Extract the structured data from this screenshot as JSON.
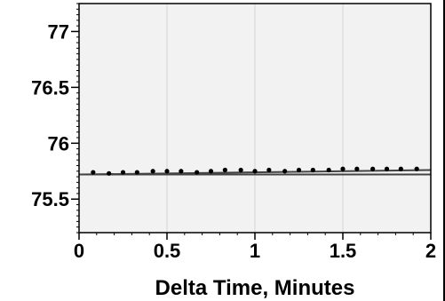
{
  "chart_data": {
    "type": "scatter",
    "title": "",
    "xlabel": "Delta Time, Minutes",
    "ylabel": "",
    "xlim": [
      0,
      2
    ],
    "ylim": [
      75.2,
      77.25
    ],
    "x_ticks": [
      0,
      0.5,
      1,
      1.5,
      2
    ],
    "x_tick_labels": [
      "0",
      "0.5",
      "1",
      "1.5",
      "2"
    ],
    "y_ticks": [
      75.5,
      76,
      76.5,
      77
    ],
    "y_tick_labels": [
      "75.5",
      "76",
      "76.5",
      "77"
    ],
    "grid": "vertical",
    "series": [
      {
        "kind": "points",
        "x": [
          0.08,
          0.17,
          0.25,
          0.33,
          0.42,
          0.5,
          0.58,
          0.67,
          0.75,
          0.83,
          0.92,
          1.0,
          1.08,
          1.17,
          1.25,
          1.33,
          1.42,
          1.5,
          1.58,
          1.67,
          1.75,
          1.83,
          1.92
        ],
        "y": [
          75.74,
          75.73,
          75.74,
          75.74,
          75.75,
          75.75,
          75.75,
          75.74,
          75.75,
          75.76,
          75.76,
          75.75,
          75.76,
          75.75,
          75.76,
          75.76,
          75.76,
          75.77,
          75.77,
          75.77,
          75.77,
          75.77,
          75.77
        ]
      },
      {
        "kind": "line",
        "x": [
          0,
          2
        ],
        "y": [
          75.72,
          75.72
        ]
      },
      {
        "kind": "line",
        "x": [
          0,
          2
        ],
        "y": [
          75.72,
          75.76
        ]
      }
    ],
    "colors": {
      "plot_background": "#f2f2f2",
      "grid": "#d4d4d4",
      "points": "#000000",
      "line": "#444444"
    }
  }
}
